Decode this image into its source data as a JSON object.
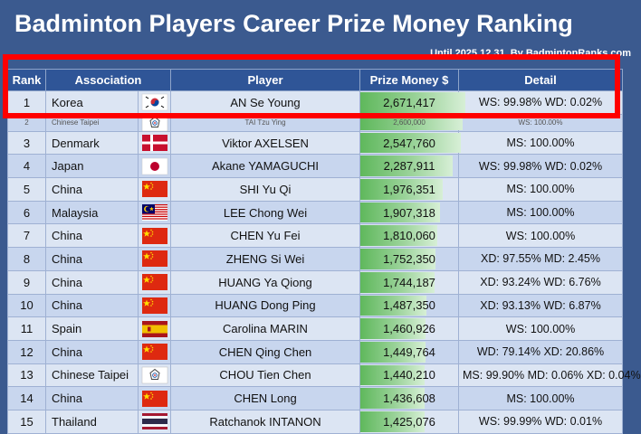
{
  "title": "Badminton Players Career Prize Money Ranking",
  "subtitle": "Until 2025.12.31, By BadmintonRanks.com",
  "columns": [
    "Rank",
    "Association",
    "",
    "Player",
    "Prize Money $",
    "Detail"
  ],
  "chart_data": {
    "type": "table",
    "title": "Badminton Players Career Prize Money Ranking",
    "max_prize": 2671417,
    "rows": [
      {
        "rank": "1",
        "association": "Korea",
        "flag": "korea-flag-icon",
        "player": "AN Se Young",
        "prize": 2671417,
        "prize_text": "2,671,417",
        "detail": "WS: 99.98% WD: 0.02%"
      },
      {
        "rank": "2",
        "association": "Chinese Taipei",
        "flag": "chinese-taipei-flag-icon",
        "player": "TAI Tzu Ying",
        "prize": 2600000,
        "prize_text": "2,600,000",
        "detail": "WS: 100.00%"
      },
      {
        "rank": "3",
        "association": "Denmark",
        "flag": "denmark-flag-icon",
        "player": "Viktor AXELSEN",
        "prize": 2547760,
        "prize_text": "2,547,760",
        "detail": "MS: 100.00%"
      },
      {
        "rank": "4",
        "association": "Japan",
        "flag": "japan-flag-icon",
        "player": "Akane YAMAGUCHI",
        "prize": 2287911,
        "prize_text": "2,287,911",
        "detail": "WS: 99.98% WD: 0.02%"
      },
      {
        "rank": "5",
        "association": "China",
        "flag": "china-flag-icon",
        "player": "SHI Yu Qi",
        "prize": 1976351,
        "prize_text": "1,976,351",
        "detail": "MS: 100.00%"
      },
      {
        "rank": "6",
        "association": "Malaysia",
        "flag": "malaysia-flag-icon",
        "player": "LEE Chong Wei",
        "prize": 1907318,
        "prize_text": "1,907,318",
        "detail": "MS: 100.00%"
      },
      {
        "rank": "7",
        "association": "China",
        "flag": "china-flag-icon",
        "player": "CHEN Yu Fei",
        "prize": 1810060,
        "prize_text": "1,810,060",
        "detail": "WS: 100.00%"
      },
      {
        "rank": "8",
        "association": "China",
        "flag": "china-flag-icon",
        "player": "ZHENG Si Wei",
        "prize": 1752350,
        "prize_text": "1,752,350",
        "detail": "XD: 97.55% MD: 2.45%"
      },
      {
        "rank": "9",
        "association": "China",
        "flag": "china-flag-icon",
        "player": "HUANG Ya Qiong",
        "prize": 1744187,
        "prize_text": "1,744,187",
        "detail": "XD: 93.24% WD: 6.76%"
      },
      {
        "rank": "10",
        "association": "China",
        "flag": "china-flag-icon",
        "player": "HUANG Dong Ping",
        "prize": 1487350,
        "prize_text": "1,487,350",
        "detail": "XD: 93.13% WD: 6.87%"
      },
      {
        "rank": "11",
        "association": "Spain",
        "flag": "spain-flag-icon",
        "player": "Carolina MARIN",
        "prize": 1460926,
        "prize_text": "1,460,926",
        "detail": "WS: 100.00%"
      },
      {
        "rank": "12",
        "association": "China",
        "flag": "china-flag-icon",
        "player": "CHEN Qing Chen",
        "prize": 1449764,
        "prize_text": "1,449,764",
        "detail": "WD: 79.14% XD: 20.86%"
      },
      {
        "rank": "13",
        "association": "Chinese Taipei",
        "flag": "chinese-taipei-flag-icon",
        "player": "CHOU Tien Chen",
        "prize": 1440210,
        "prize_text": "1,440,210",
        "detail": "MS: 99.90% MD: 0.06% XD: 0.04%"
      },
      {
        "rank": "14",
        "association": "China",
        "flag": "china-flag-icon",
        "player": "CHEN Long",
        "prize": 1436608,
        "prize_text": "1,436,608",
        "detail": "MS: 100.00%"
      },
      {
        "rank": "15",
        "association": "Thailand",
        "flag": "thailand-flag-icon",
        "player": "Ratchanok INTANON",
        "prize": 1425076,
        "prize_text": "1,425,076",
        "detail": "WS: 99.99% WD: 0.01%"
      }
    ]
  },
  "colors": {
    "background": "#3b5a8f",
    "header": "#2f5597",
    "highlight_border": "#ff0000",
    "bar": "#5fb85c"
  }
}
